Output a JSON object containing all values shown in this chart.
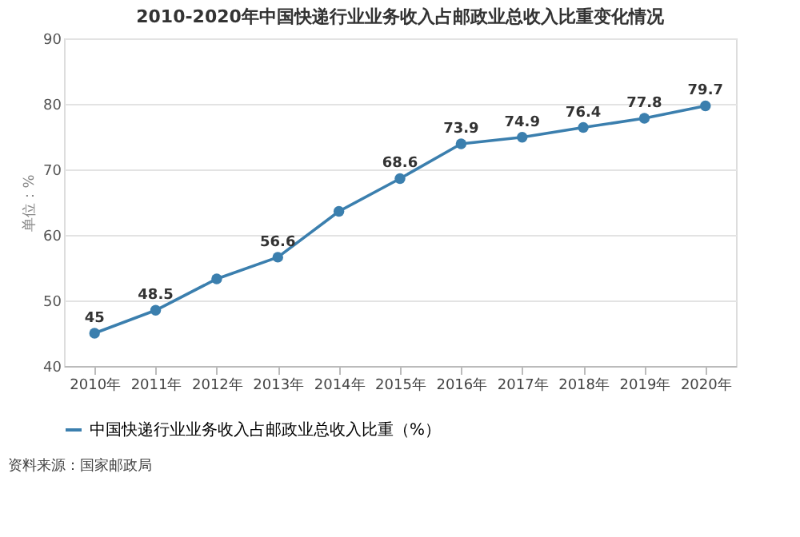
{
  "chart_data": {
    "type": "line",
    "title": "2010-2020年中国快递行业业务收入占邮政业总收入比重变化情况",
    "ylabel": "单位：%",
    "categories": [
      "2010年",
      "2011年",
      "2012年",
      "2013年",
      "2014年",
      "2015年",
      "2016年",
      "2017年",
      "2018年",
      "2019年",
      "2020年"
    ],
    "series": [
      {
        "name": "中国快递行业业务收入占邮政业总收入比重（%）",
        "color": "#3b7fae",
        "values": [
          45,
          48.5,
          53.3,
          56.6,
          63.6,
          68.6,
          73.9,
          74.9,
          76.4,
          77.8,
          79.7
        ],
        "value_labels": [
          "45",
          "48.5",
          null,
          "56.6",
          null,
          "68.6",
          "73.9",
          "74.9",
          "76.4",
          "77.8",
          "79.7"
        ]
      }
    ],
    "ylim": [
      40,
      90
    ],
    "yticks": [
      40,
      50,
      60,
      70,
      80,
      90
    ],
    "grid": "y",
    "legend": "bottom",
    "marker": "circle",
    "line_style": "solid",
    "annotations": [
      "资料来源：国家邮政局"
    ]
  }
}
